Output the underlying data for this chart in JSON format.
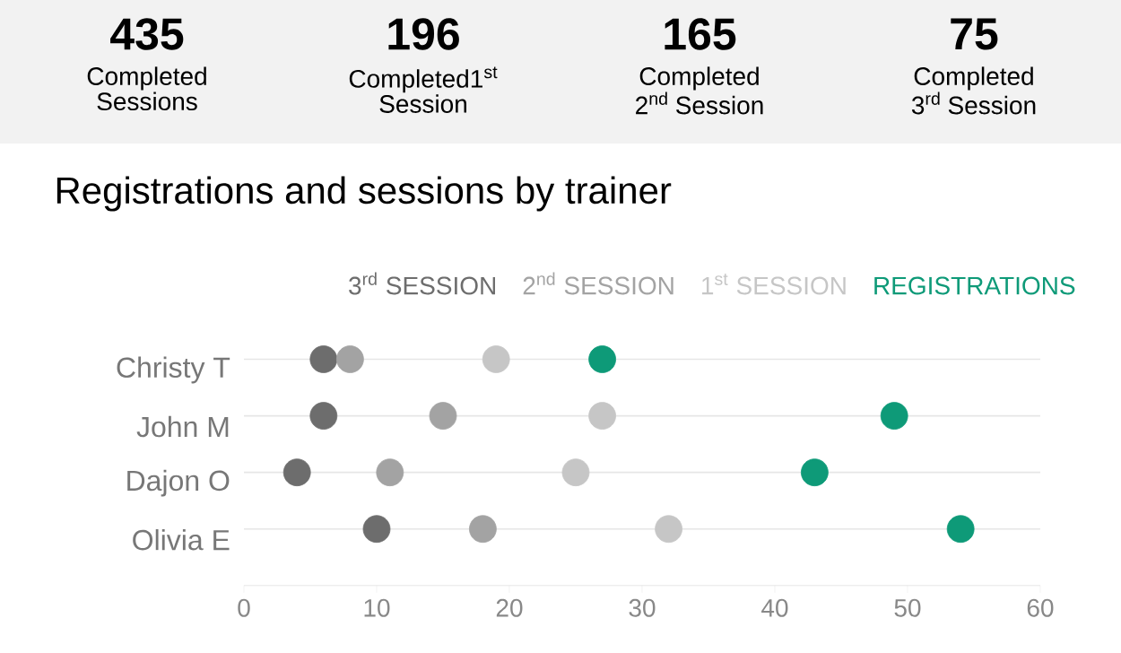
{
  "chart_data": [
    {
      "type": "other",
      "annotations": [
        "435",
        "Completed Sessions",
        "196",
        "Completed1$^{st}$ Session",
        "165",
        "Completed 2$^{nd}$ Session",
        "75",
        "Completed 3$^{rd}$ Session"
      ]
    },
    {
      "type": "scatter",
      "title": "Registrations and sessions by trainer",
      "orientation": "horizontal",
      "categories": [
        "Christy T",
        "John M",
        "Dajon O",
        "Olivia E"
      ],
      "series": [
        {
          "name": "3$^{rd}$ SESSION",
          "color": "#6d6d6d",
          "values": [
            6,
            6,
            4,
            10
          ]
        },
        {
          "name": "2$^{nd}$ SESSION",
          "color": "#a3a3a3",
          "values": [
            8,
            15,
            11,
            18
          ]
        },
        {
          "name": "1$^{st}$ SESSION",
          "color": "#c6c6c6",
          "values": [
            19,
            27,
            25,
            32
          ]
        },
        {
          "name": "REGISTRATIONS",
          "color": "#0e9a78",
          "values": [
            27,
            49,
            43,
            54
          ]
        }
      ],
      "xlim": [
        0,
        60
      ],
      "xticks": [
        0,
        10,
        20,
        30,
        40,
        50,
        60
      ],
      "grid": "y",
      "legend": "top right"
    }
  ]
}
